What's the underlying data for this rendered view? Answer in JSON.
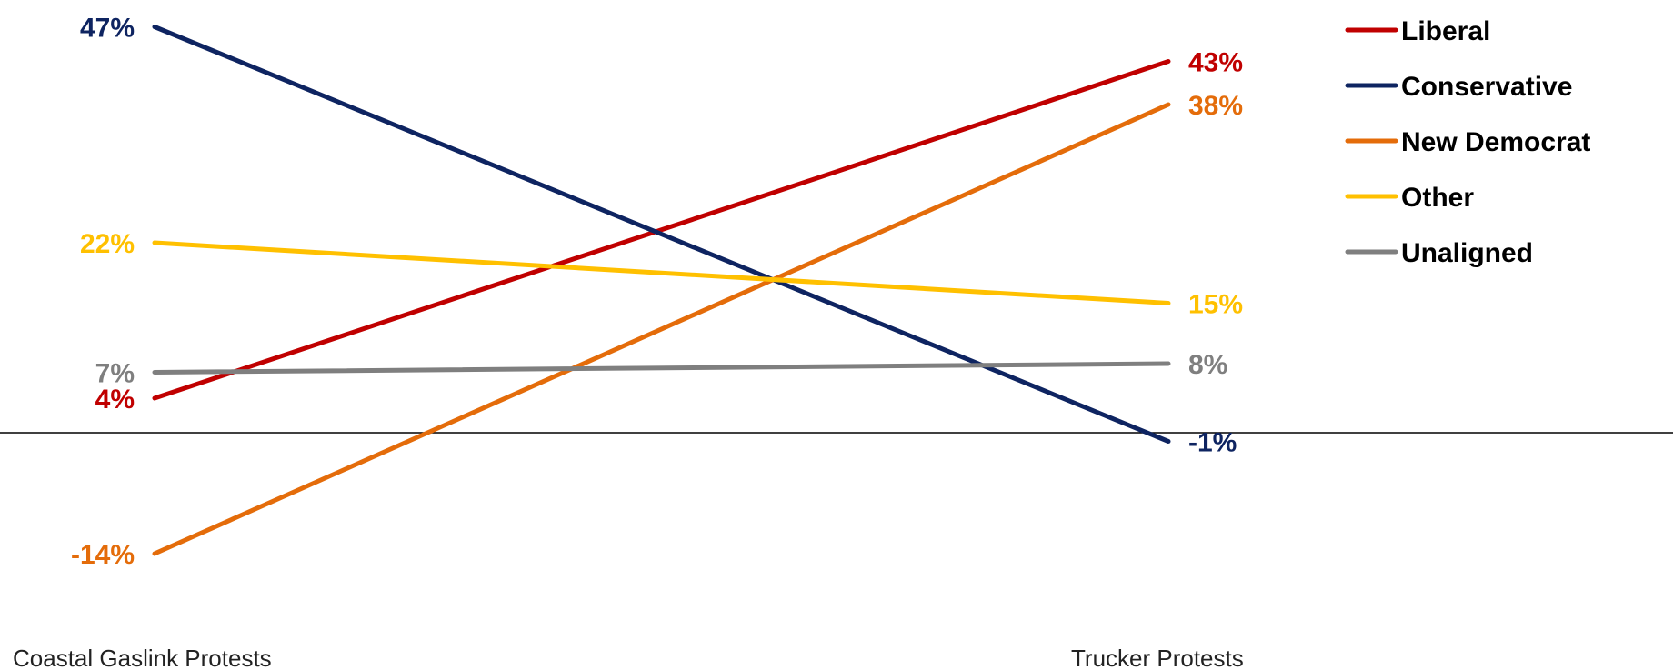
{
  "chart_data": {
    "type": "line",
    "categories": [
      "Coastal Gaslink Protests",
      "Trucker Protests"
    ],
    "series": [
      {
        "name": "Liberal",
        "values": [
          4,
          43
        ],
        "color": "#C00000"
      },
      {
        "name": "Conservative",
        "values": [
          47,
          -1
        ],
        "color": "#0E2461"
      },
      {
        "name": "New Democrat",
        "values": [
          -14,
          38
        ],
        "color": "#E46C0A"
      },
      {
        "name": "Other",
        "values": [
          22,
          15
        ],
        "color": "#FFC000"
      },
      {
        "name": "Unaligned",
        "values": [
          7,
          8
        ],
        "color": "#7F7F7F"
      }
    ],
    "value_labels": {
      "Liberal": [
        "4%",
        "43%"
      ],
      "Conservative": [
        "47%",
        "-1%"
      ],
      "New Democrat": [
        "-14%",
        "38%"
      ],
      "Other": [
        "22%",
        "15%"
      ],
      "Unaligned": [
        "7%",
        "8%"
      ]
    },
    "ylim": [
      -16,
      48
    ],
    "zero_line": true,
    "grid": false,
    "legend_position": "top-right"
  }
}
